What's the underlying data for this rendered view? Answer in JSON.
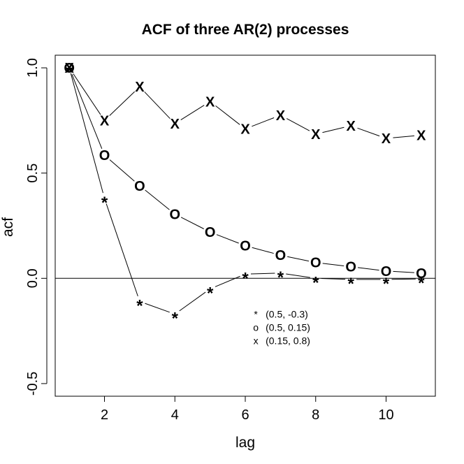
{
  "chart_data": {
    "type": "line",
    "title": "ACF of three AR(2) processes",
    "xlabel": "lag",
    "ylabel": "acf",
    "xlim": [
      0.6,
      11.4
    ],
    "ylim": [
      -0.56,
      1.06
    ],
    "x_ticks": [
      2,
      4,
      6,
      8,
      10
    ],
    "x_tick_labels": [
      "2",
      "4",
      "6",
      "8",
      "10"
    ],
    "y_ticks": [
      -0.5,
      0.0,
      0.5,
      1.0
    ],
    "y_tick_labels": [
      "-0.5",
      "0.0",
      "0.5",
      "1.0"
    ],
    "reference_line": 0,
    "grid": false,
    "legend_position": "center",
    "x": [
      1,
      2,
      3,
      4,
      5,
      6,
      7,
      8,
      9,
      10,
      11
    ],
    "series": [
      {
        "name": "(0.5, -0.3)",
        "marker": "*",
        "values": [
          1.0,
          0.38,
          -0.11,
          -0.17,
          -0.05,
          0.02,
          0.025,
          0.0,
          -0.005,
          -0.005,
          -0.003
        ]
      },
      {
        "name": "(0.5, 0.15)",
        "marker": "O",
        "values": [
          1.0,
          0.585,
          0.44,
          0.305,
          0.22,
          0.155,
          0.11,
          0.075,
          0.055,
          0.035,
          0.025
        ]
      },
      {
        "name": "(0.15, 0.8)",
        "marker": "X",
        "values": [
          1.0,
          0.75,
          0.91,
          0.735,
          0.84,
          0.71,
          0.775,
          0.685,
          0.725,
          0.665,
          0.68
        ]
      }
    ],
    "legend_markers": [
      "*",
      "o",
      "x"
    ]
  }
}
